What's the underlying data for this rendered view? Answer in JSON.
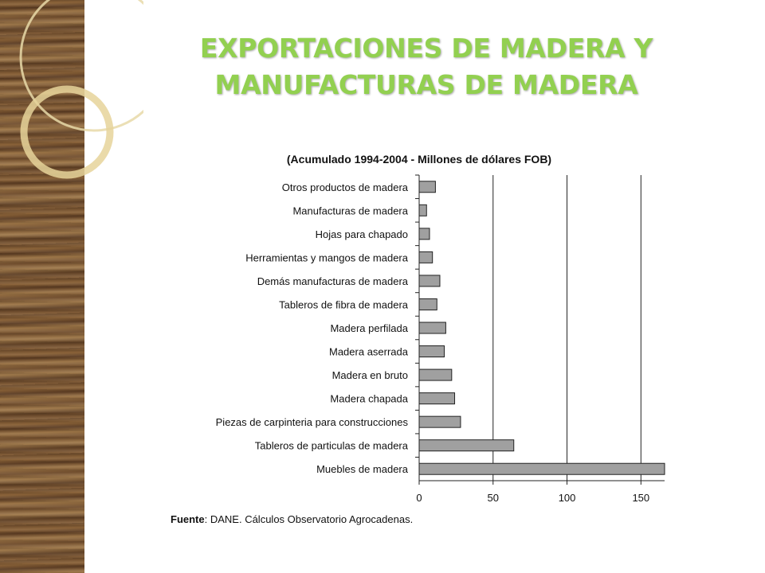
{
  "slide": {
    "title_line1": "EXPORTACIONES DE MADERA Y",
    "title_line2": "MANUFACTURAS DE MADERA",
    "title_color": "#92d050"
  },
  "chart_data": {
    "type": "bar",
    "orientation": "horizontal",
    "title": "(Acumulado 1994-2004 - Millones de dólares FOB)",
    "categories": [
      "Otros productos de madera",
      "Manufacturas de madera",
      "Hojas para chapado",
      "Herramientas y mangos de madera",
      "Demás manufacturas de madera",
      "Tableros de fibra de madera",
      "Madera perfilada",
      "Madera aserrada",
      "Madera en bruto",
      "Madera chapada",
      "Piezas de carpinteria para construcciones",
      "Tableros de particulas de madera",
      "Muebles de madera"
    ],
    "values": [
      11,
      5,
      7,
      9,
      14,
      12,
      18,
      17,
      22,
      24,
      28,
      64,
      168
    ],
    "xticks": [
      0,
      50,
      100,
      150
    ],
    "xlim": [
      0,
      166
    ],
    "bar_color": "#a0a0a0",
    "grid": "vertical",
    "source_label": "Fuente",
    "source_text": ": DANE. Cálculos Observatorio Agrocadenas."
  }
}
